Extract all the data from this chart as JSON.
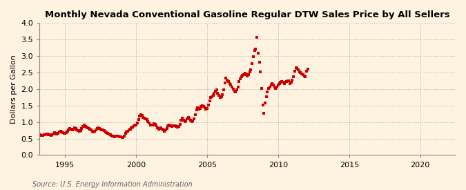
{
  "title": "Monthly Nevada Conventional Gasoline Regular DTW Sales Price by All Sellers",
  "ylabel": "Dollars per Gallon",
  "source": "Source: U.S. Energy Information Administration",
  "xlim": [
    1993.2,
    2022.5
  ],
  "ylim": [
    0.0,
    4.0
  ],
  "xticks": [
    1995,
    2000,
    2005,
    2010,
    2015,
    2020
  ],
  "yticks": [
    0.0,
    0.5,
    1.0,
    1.5,
    2.0,
    2.5,
    3.0,
    3.5,
    4.0
  ],
  "background_color": "#fdf3e0",
  "marker_color": "#cc0000",
  "marker_size": 2.8,
  "data": [
    [
      1993.25,
      0.62
    ],
    [
      1993.33,
      0.6
    ],
    [
      1993.42,
      0.6
    ],
    [
      1993.5,
      0.61
    ],
    [
      1993.58,
      0.62
    ],
    [
      1993.67,
      0.64
    ],
    [
      1993.75,
      0.63
    ],
    [
      1993.83,
      0.62
    ],
    [
      1993.92,
      0.61
    ],
    [
      1994.0,
      0.6
    ],
    [
      1994.08,
      0.62
    ],
    [
      1994.17,
      0.64
    ],
    [
      1994.25,
      0.67
    ],
    [
      1994.33,
      0.65
    ],
    [
      1994.42,
      0.64
    ],
    [
      1994.5,
      0.66
    ],
    [
      1994.58,
      0.7
    ],
    [
      1994.67,
      0.72
    ],
    [
      1994.75,
      0.7
    ],
    [
      1994.83,
      0.68
    ],
    [
      1994.92,
      0.66
    ],
    [
      1995.0,
      0.65
    ],
    [
      1995.08,
      0.67
    ],
    [
      1995.17,
      0.72
    ],
    [
      1995.25,
      0.77
    ],
    [
      1995.33,
      0.8
    ],
    [
      1995.42,
      0.78
    ],
    [
      1995.5,
      0.76
    ],
    [
      1995.58,
      0.78
    ],
    [
      1995.67,
      0.82
    ],
    [
      1995.75,
      0.8
    ],
    [
      1995.83,
      0.77
    ],
    [
      1995.92,
      0.74
    ],
    [
      1996.0,
      0.72
    ],
    [
      1996.08,
      0.74
    ],
    [
      1996.17,
      0.8
    ],
    [
      1996.25,
      0.87
    ],
    [
      1996.33,
      0.9
    ],
    [
      1996.42,
      0.87
    ],
    [
      1996.5,
      0.84
    ],
    [
      1996.58,
      0.83
    ],
    [
      1996.67,
      0.81
    ],
    [
      1996.75,
      0.79
    ],
    [
      1996.83,
      0.76
    ],
    [
      1996.92,
      0.73
    ],
    [
      1997.0,
      0.71
    ],
    [
      1997.08,
      0.73
    ],
    [
      1997.17,
      0.76
    ],
    [
      1997.25,
      0.81
    ],
    [
      1997.33,
      0.83
    ],
    [
      1997.42,
      0.81
    ],
    [
      1997.5,
      0.79
    ],
    [
      1997.58,
      0.77
    ],
    [
      1997.67,
      0.76
    ],
    [
      1997.75,
      0.74
    ],
    [
      1997.83,
      0.71
    ],
    [
      1997.92,
      0.68
    ],
    [
      1998.0,
      0.66
    ],
    [
      1998.08,
      0.63
    ],
    [
      1998.17,
      0.62
    ],
    [
      1998.25,
      0.6
    ],
    [
      1998.33,
      0.58
    ],
    [
      1998.42,
      0.57
    ],
    [
      1998.5,
      0.56
    ],
    [
      1998.58,
      0.57
    ],
    [
      1998.67,
      0.58
    ],
    [
      1998.75,
      0.57
    ],
    [
      1998.83,
      0.56
    ],
    [
      1998.92,
      0.55
    ],
    [
      1999.0,
      0.53
    ],
    [
      1999.08,
      0.54
    ],
    [
      1999.17,
      0.58
    ],
    [
      1999.25,
      0.65
    ],
    [
      1999.33,
      0.7
    ],
    [
      1999.42,
      0.73
    ],
    [
      1999.5,
      0.76
    ],
    [
      1999.58,
      0.79
    ],
    [
      1999.67,
      0.82
    ],
    [
      1999.75,
      0.85
    ],
    [
      1999.83,
      0.88
    ],
    [
      1999.92,
      0.9
    ],
    [
      2000.0,
      0.92
    ],
    [
      2000.08,
      0.98
    ],
    [
      2000.17,
      1.08
    ],
    [
      2000.25,
      1.18
    ],
    [
      2000.33,
      1.22
    ],
    [
      2000.42,
      1.2
    ],
    [
      2000.5,
      1.14
    ],
    [
      2000.58,
      1.12
    ],
    [
      2000.67,
      1.1
    ],
    [
      2000.75,
      1.07
    ],
    [
      2000.83,
      1.02
    ],
    [
      2000.92,
      0.97
    ],
    [
      2001.0,
      0.92
    ],
    [
      2001.08,
      0.9
    ],
    [
      2001.17,
      0.92
    ],
    [
      2001.25,
      0.96
    ],
    [
      2001.33,
      0.93
    ],
    [
      2001.42,
      0.89
    ],
    [
      2001.5,
      0.83
    ],
    [
      2001.58,
      0.79
    ],
    [
      2001.67,
      0.81
    ],
    [
      2001.75,
      0.83
    ],
    [
      2001.83,
      0.79
    ],
    [
      2001.92,
      0.76
    ],
    [
      2002.0,
      0.73
    ],
    [
      2002.08,
      0.76
    ],
    [
      2002.17,
      0.81
    ],
    [
      2002.25,
      0.89
    ],
    [
      2002.33,
      0.91
    ],
    [
      2002.42,
      0.89
    ],
    [
      2002.5,
      0.86
    ],
    [
      2002.58,
      0.88
    ],
    [
      2002.67,
      0.89
    ],
    [
      2002.75,
      0.88
    ],
    [
      2002.83,
      0.86
    ],
    [
      2002.92,
      0.84
    ],
    [
      2003.0,
      0.86
    ],
    [
      2003.08,
      0.93
    ],
    [
      2003.17,
      1.06
    ],
    [
      2003.25,
      1.11
    ],
    [
      2003.33,
      1.06
    ],
    [
      2003.42,
      1.01
    ],
    [
      2003.5,
      1.03
    ],
    [
      2003.58,
      1.09
    ],
    [
      2003.67,
      1.13
    ],
    [
      2003.75,
      1.11
    ],
    [
      2003.83,
      1.06
    ],
    [
      2003.92,
      1.01
    ],
    [
      2004.0,
      1.03
    ],
    [
      2004.08,
      1.1
    ],
    [
      2004.17,
      1.22
    ],
    [
      2004.25,
      1.37
    ],
    [
      2004.33,
      1.44
    ],
    [
      2004.42,
      1.4
    ],
    [
      2004.5,
      1.42
    ],
    [
      2004.58,
      1.47
    ],
    [
      2004.67,
      1.5
    ],
    [
      2004.75,
      1.47
    ],
    [
      2004.83,
      1.44
    ],
    [
      2004.92,
      1.4
    ],
    [
      2005.0,
      1.42
    ],
    [
      2005.08,
      1.52
    ],
    [
      2005.17,
      1.64
    ],
    [
      2005.25,
      1.74
    ],
    [
      2005.33,
      1.77
    ],
    [
      2005.42,
      1.82
    ],
    [
      2005.5,
      1.88
    ],
    [
      2005.58,
      1.93
    ],
    [
      2005.67,
      1.98
    ],
    [
      2005.75,
      1.87
    ],
    [
      2005.83,
      1.8
    ],
    [
      2005.92,
      1.74
    ],
    [
      2006.0,
      1.77
    ],
    [
      2006.08,
      1.84
    ],
    [
      2006.17,
      1.97
    ],
    [
      2006.25,
      2.18
    ],
    [
      2006.33,
      2.33
    ],
    [
      2006.42,
      2.28
    ],
    [
      2006.5,
      2.22
    ],
    [
      2006.58,
      2.17
    ],
    [
      2006.67,
      2.12
    ],
    [
      2006.75,
      2.07
    ],
    [
      2006.83,
      2.0
    ],
    [
      2006.92,
      1.94
    ],
    [
      2007.0,
      1.92
    ],
    [
      2007.08,
      1.97
    ],
    [
      2007.17,
      2.07
    ],
    [
      2007.25,
      2.22
    ],
    [
      2007.33,
      2.32
    ],
    [
      2007.42,
      2.37
    ],
    [
      2007.5,
      2.42
    ],
    [
      2007.58,
      2.44
    ],
    [
      2007.67,
      2.47
    ],
    [
      2007.75,
      2.44
    ],
    [
      2007.83,
      2.4
    ],
    [
      2007.92,
      2.44
    ],
    [
      2008.0,
      2.52
    ],
    [
      2008.08,
      2.58
    ],
    [
      2008.17,
      2.78
    ],
    [
      2008.25,
      2.98
    ],
    [
      2008.33,
      3.17
    ],
    [
      2008.42,
      3.22
    ],
    [
      2008.5,
      3.57
    ],
    [
      2008.58,
      3.08
    ],
    [
      2008.67,
      2.82
    ],
    [
      2008.75,
      2.52
    ],
    [
      2008.83,
      2.02
    ],
    [
      2008.92,
      1.52
    ],
    [
      2009.0,
      1.27
    ],
    [
      2009.08,
      1.57
    ],
    [
      2009.17,
      1.77
    ],
    [
      2009.25,
      1.92
    ],
    [
      2009.33,
      2.02
    ],
    [
      2009.42,
      2.07
    ],
    [
      2009.5,
      2.12
    ],
    [
      2009.58,
      2.17
    ],
    [
      2009.67,
      2.12
    ],
    [
      2009.75,
      2.07
    ],
    [
      2009.83,
      2.02
    ],
    [
      2009.92,
      2.07
    ],
    [
      2010.0,
      2.12
    ],
    [
      2010.08,
      2.17
    ],
    [
      2010.17,
      2.2
    ],
    [
      2010.25,
      2.22
    ],
    [
      2010.33,
      2.2
    ],
    [
      2010.42,
      2.17
    ],
    [
      2010.5,
      2.2
    ],
    [
      2010.58,
      2.22
    ],
    [
      2010.67,
      2.24
    ],
    [
      2010.75,
      2.24
    ],
    [
      2010.83,
      2.17
    ],
    [
      2010.92,
      2.2
    ],
    [
      2011.0,
      2.27
    ],
    [
      2011.08,
      2.37
    ],
    [
      2011.17,
      2.55
    ],
    [
      2011.25,
      2.65
    ],
    [
      2011.33,
      2.62
    ],
    [
      2011.42,
      2.58
    ],
    [
      2011.5,
      2.53
    ],
    [
      2011.58,
      2.49
    ],
    [
      2011.67,
      2.46
    ],
    [
      2011.75,
      2.44
    ],
    [
      2011.83,
      2.4
    ],
    [
      2011.92,
      2.37
    ],
    [
      2012.0,
      2.55
    ],
    [
      2012.08,
      2.6
    ]
  ]
}
